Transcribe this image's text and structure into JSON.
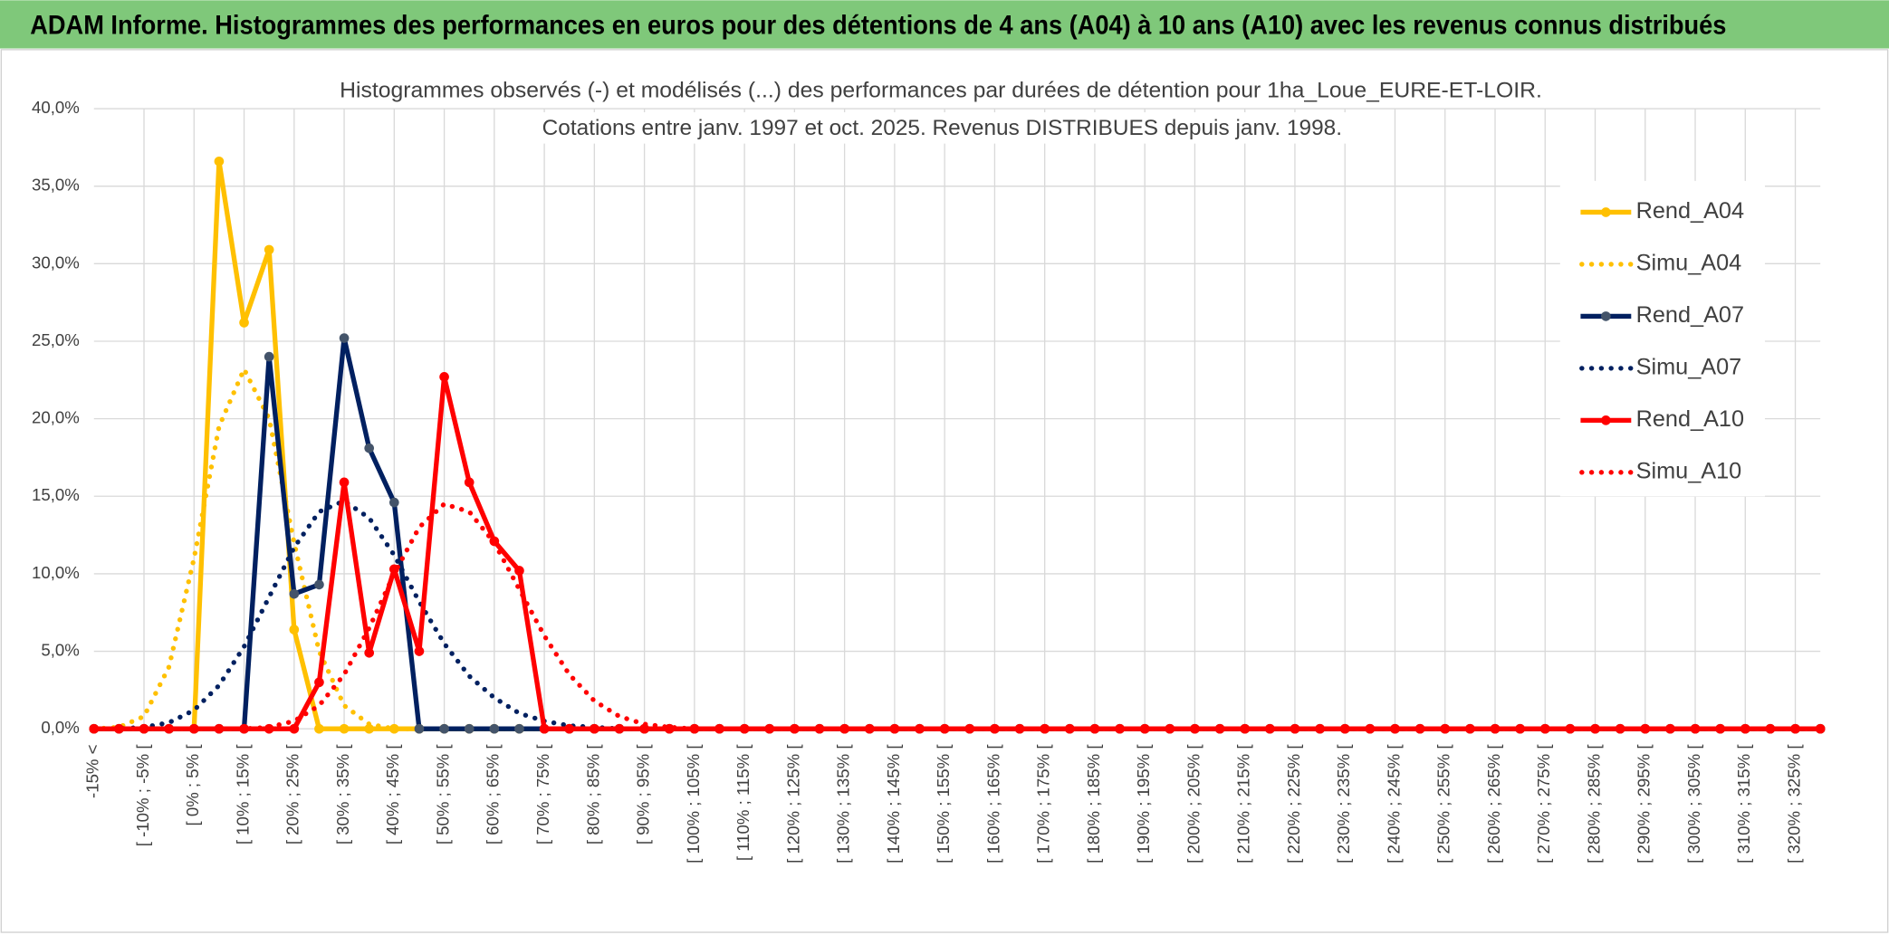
{
  "header": {
    "title": "ADAM Informe. Histogrammes des performances en euros pour des détentions de 4 ans (A04) à 10 ans (A10) avec les revenus connus distribués"
  },
  "chart_data": {
    "type": "line",
    "title": "Histogrammes observés (-) et modélisés (...) des performances par durées de détention pour 1ha_Loue_EURE-ET-LOIR.",
    "subtitle": "Cotations entre janv. 1997 et oct. 2025. Revenus DISTRIBUES depuis janv. 1998.",
    "categories": [
      "-15% <",
      null,
      "[ -10% ; -5% [",
      null,
      "[ 0% ; 5% [",
      null,
      "[ 10% ; 15% [",
      null,
      "[ 20% ; 25% [",
      null,
      "[ 30% ; 35% [",
      null,
      "[ 40% ; 45% [",
      null,
      "[ 50% ; 55% [",
      null,
      "[ 60% ; 65% [",
      null,
      "[ 70% ; 75% [",
      null,
      "[ 80% ; 85% [",
      null,
      "[ 90% ; 95% [",
      null,
      "[ 100% ; 105% [",
      null,
      "[ 110% ; 115% [",
      null,
      "[ 120% ; 125% [",
      null,
      "[ 130% ; 135% [",
      null,
      "[ 140% ; 145% [",
      null,
      "[ 150% ; 155% [",
      null,
      "[ 160% ; 165% [",
      null,
      "[ 170% ; 175% [",
      null,
      "[ 180% ; 185% [",
      null,
      "[ 190% ; 195% [",
      null,
      "[ 200% ; 205% [",
      null,
      "[ 210% ; 215% [",
      null,
      "[ 220% ; 225% [",
      null,
      "[ 230% ; 235% [",
      null,
      "[ 240% ; 245% [",
      null,
      "[ 250% ; 255% [",
      null,
      "[ 260% ; 265% [",
      null,
      "[ 270% ; 275% [",
      null,
      "[ 280% ; 285% [",
      null,
      "[ 290% ; 295% [",
      null,
      "[ 300% ; 305% [",
      null,
      "[ 310% ; 315% [",
      null,
      "[ 320% ; 325% [",
      null
    ],
    "series": [
      {
        "name": "Rend_A04",
        "color": "#ffc000",
        "style": "solid",
        "marker": true,
        "values": [
          0,
          0,
          0,
          0,
          0,
          36.6,
          26.2,
          30.9,
          6.4,
          0,
          0,
          0,
          0,
          0,
          0,
          0,
          0,
          0,
          0,
          0,
          0,
          0,
          0,
          0,
          0,
          0,
          0,
          0,
          0,
          0,
          0,
          0,
          0,
          0,
          0,
          0,
          0,
          0,
          0,
          0,
          0,
          0,
          0,
          0,
          0,
          0,
          0,
          0,
          0,
          0,
          0,
          0,
          0,
          0,
          0,
          0,
          0,
          0,
          0,
          0,
          0,
          0,
          0,
          0,
          0,
          0,
          0,
          0,
          0,
          0
        ]
      },
      {
        "name": "Simu_A04",
        "color": "#ffc000",
        "style": "dotted",
        "marker": false,
        "values": [
          0,
          0.1,
          0.8,
          4,
          11,
          19.5,
          23.2,
          20,
          12,
          5,
          1.5,
          0.3,
          0,
          0,
          0,
          0,
          0,
          0,
          0,
          0,
          0,
          0,
          0,
          0,
          0,
          0,
          0,
          0,
          0,
          0,
          0,
          0,
          0,
          0,
          0,
          0,
          0,
          0,
          0,
          0,
          0,
          0,
          0,
          0,
          0,
          0,
          0,
          0,
          0,
          0,
          0,
          0,
          0,
          0,
          0,
          0,
          0,
          0,
          0,
          0,
          0,
          0,
          0,
          0,
          0,
          0,
          0,
          0,
          0,
          0
        ]
      },
      {
        "name": "Rend_A07",
        "color": "#002060",
        "style": "solid",
        "marker": true,
        "values": [
          0,
          0,
          0,
          0,
          0,
          0,
          0,
          24,
          8.7,
          9.3,
          25.2,
          18.1,
          14.6,
          0,
          0,
          0,
          0,
          0,
          0,
          0,
          0,
          0,
          0,
          0,
          0,
          0,
          0,
          0,
          0,
          0,
          0,
          0,
          0,
          0,
          0,
          0,
          0,
          0,
          0,
          0,
          0,
          0,
          0,
          0,
          0,
          0,
          0,
          0,
          0,
          0,
          0,
          0,
          0,
          0,
          0,
          0,
          0,
          0,
          0,
          0,
          0,
          0,
          0,
          0,
          0,
          0,
          0,
          0,
          0,
          0
        ]
      },
      {
        "name": "Simu_A07",
        "color": "#002060",
        "style": "dotted",
        "marker": false,
        "values": [
          0,
          0,
          0.1,
          0.4,
          1.2,
          2.8,
          5.3,
          8.5,
          11.7,
          14,
          14.7,
          13.6,
          11.2,
          8.2,
          5.5,
          3.4,
          2,
          1,
          0.5,
          0.2,
          0.1,
          0,
          0,
          0,
          0,
          0,
          0,
          0,
          0,
          0,
          0,
          0,
          0,
          0,
          0,
          0,
          0,
          0,
          0,
          0,
          0,
          0,
          0,
          0,
          0,
          0,
          0,
          0,
          0,
          0,
          0,
          0,
          0,
          0,
          0,
          0,
          0,
          0,
          0,
          0,
          0,
          0,
          0,
          0,
          0,
          0,
          0,
          0,
          0,
          0
        ]
      },
      {
        "name": "Rend_A10",
        "color": "#ff0000",
        "style": "solid",
        "marker": true,
        "values": [
          0,
          0,
          0,
          0,
          0,
          0,
          0,
          0,
          0,
          3,
          15.9,
          4.9,
          10.3,
          5,
          22.7,
          15.9,
          12.1,
          10.2,
          0,
          0,
          0,
          0,
          0,
          0,
          0,
          0,
          0,
          0,
          0,
          0,
          0,
          0,
          0,
          0,
          0,
          0,
          0,
          0,
          0,
          0,
          0,
          0,
          0,
          0,
          0,
          0,
          0,
          0,
          0,
          0,
          0,
          0,
          0,
          0,
          0,
          0,
          0,
          0,
          0,
          0,
          0,
          0,
          0,
          0,
          0,
          0,
          0,
          0,
          0,
          0
        ]
      },
      {
        "name": "Simu_A10",
        "color": "#ff0000",
        "style": "dotted",
        "marker": false,
        "values": [
          0,
          0,
          0,
          0,
          0,
          0,
          0,
          0.1,
          0.5,
          1.5,
          3.5,
          6.5,
          10,
          13,
          14.5,
          14,
          12,
          9,
          6,
          3.5,
          1.8,
          0.8,
          0.3,
          0.1,
          0,
          0,
          0,
          0,
          0,
          0,
          0,
          0,
          0,
          0,
          0,
          0,
          0,
          0,
          0,
          0,
          0,
          0,
          0,
          0,
          0,
          0,
          0,
          0,
          0,
          0,
          0,
          0,
          0,
          0,
          0,
          0,
          0,
          0,
          0,
          0,
          0,
          0,
          0,
          0,
          0,
          0,
          0,
          0,
          0,
          0
        ]
      }
    ],
    "ylim": [
      0,
      40
    ],
    "yticks": [
      {
        "value": 0,
        "label": "0,0%"
      },
      {
        "value": 5,
        "label": "5,0%"
      },
      {
        "value": 10,
        "label": "10,0%"
      },
      {
        "value": 15,
        "label": "15,0%"
      },
      {
        "value": 20,
        "label": "20,0%"
      },
      {
        "value": 25,
        "label": "25,0%"
      },
      {
        "value": 30,
        "label": "30,0%"
      },
      {
        "value": 35,
        "label": "35,0%"
      },
      {
        "value": 40,
        "label": "40,0%"
      }
    ],
    "grid": true,
    "legend": "right"
  }
}
